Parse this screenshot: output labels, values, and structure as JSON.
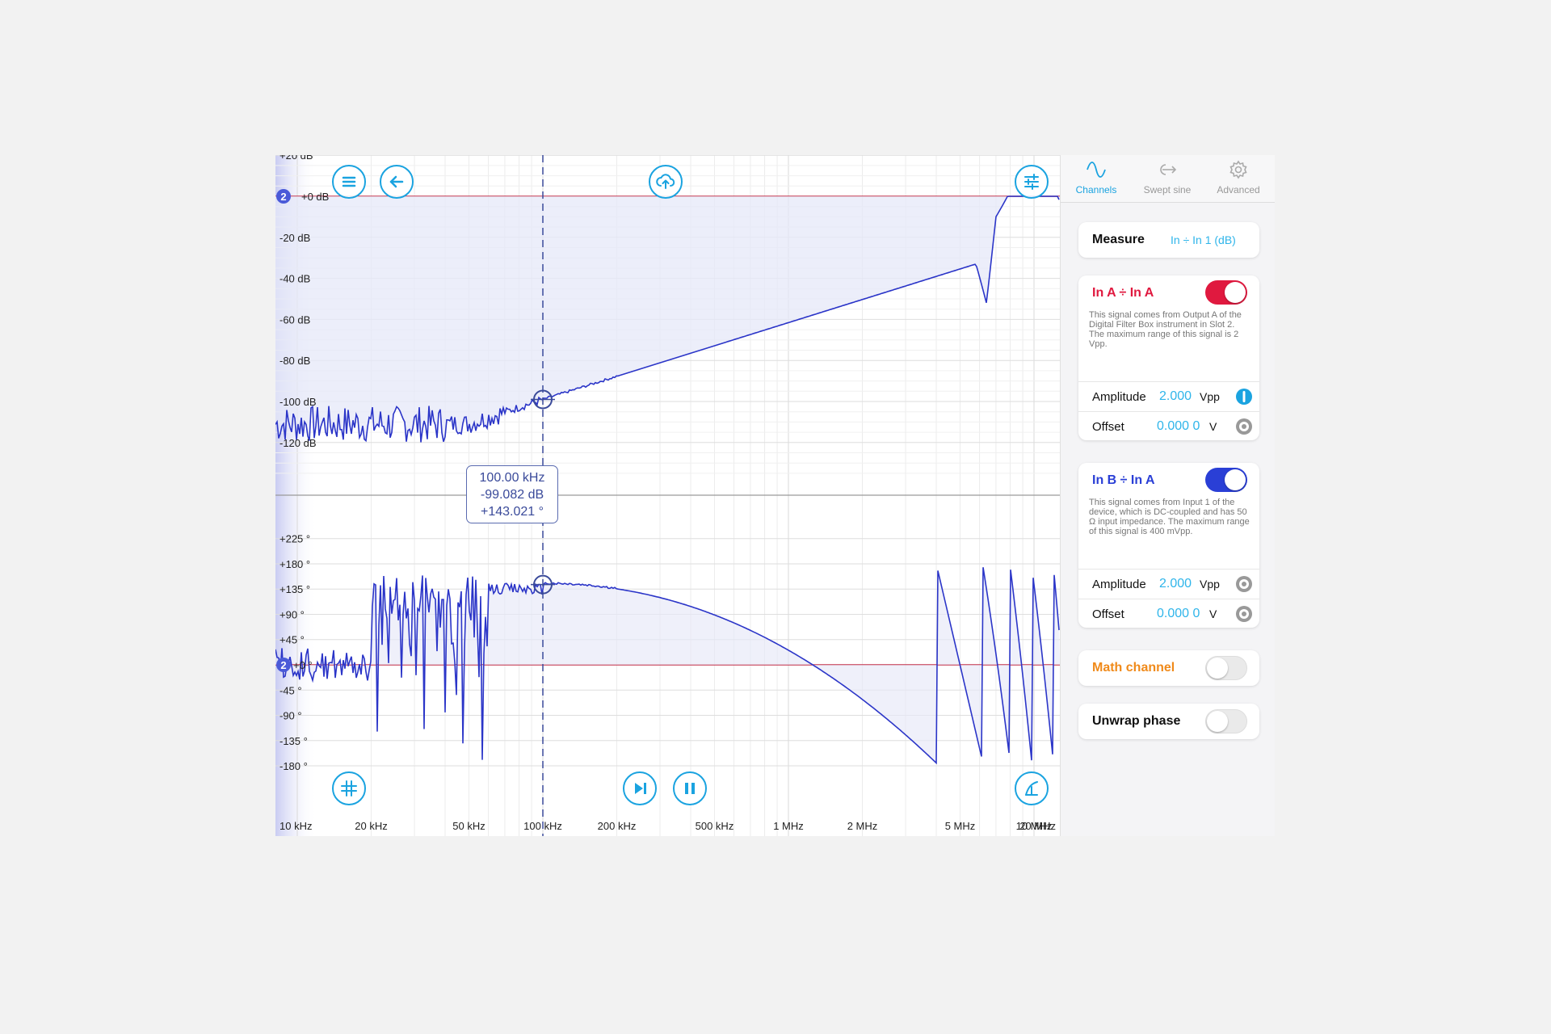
{
  "plot": {
    "magnitude_ticks": [
      "+20 dB",
      "+0 dB",
      "-20 dB",
      "-40 dB",
      "-60 dB",
      "-80 dB",
      "-100 dB",
      "-120 dB"
    ],
    "phase_ticks": [
      "+225 °",
      "+180 °",
      "+135 °",
      "+90 °",
      "+45 °",
      "+0 °",
      "-45 °",
      "-90 °",
      "-135 °",
      "-180 °"
    ],
    "freq_ticks": [
      "10 kHz",
      "20 kHz",
      "50 kHz",
      "100 kHz",
      "200 kHz",
      "500 kHz",
      "1 MHz",
      "2 MHz",
      "5 MHz",
      "10 MHz",
      "20 MHz"
    ],
    "ref_marker_mag": "2",
    "ref_marker_phase": "2",
    "cursor": {
      "freq": "100.00 kHz",
      "mag": "-99.082 dB",
      "phase": "+143.021 °"
    },
    "colors": {
      "trace": "#2b35c8",
      "reference": "#c43048",
      "accent": "#1aa3e0",
      "fill": "#e6e8f8"
    }
  },
  "chart_data": [
    {
      "type": "line",
      "title": "",
      "xlabel": "",
      "ylabel": "",
      "x_scale": "log",
      "xlim": [
        10000,
        25000000
      ],
      "ylim": [
        -130,
        20
      ],
      "series": [
        {
          "x": [
            10000,
            20000,
            30000,
            50000,
            70000,
            100000,
            200000,
            500000,
            1000000,
            2000000,
            5000000,
            6000000,
            6500000,
            7000000,
            8000000,
            10000000,
            12000000,
            13000000,
            14000000,
            17000000,
            20000000,
            25000000
          ],
          "y": [
            -110,
            -112,
            -111,
            -110,
            -104,
            -99,
            -90,
            -78,
            -68,
            -56,
            -38,
            -30,
            -52,
            -10,
            0,
            0,
            0,
            -10,
            -38,
            -12,
            -12,
            -13
          ]
        }
      ]
    },
    {
      "type": "line",
      "title": "",
      "xlabel": "",
      "ylabel": "",
      "x_scale": "log",
      "xlim": [
        10000,
        25000000
      ],
      "ylim": [
        -200,
        240
      ],
      "series": [
        {
          "x": [
            10000,
            20000,
            40000,
            60000,
            100000,
            150000,
            200000,
            300000,
            500000,
            1000000,
            2000000,
            3000000,
            4000000,
            4000001,
            5000000,
            7000000,
            7000001,
            8000000,
            8000001,
            9500000,
            9500001,
            11000000,
            11000001,
            13000000,
            13000001,
            15000000,
            15000001,
            17000000,
            17000001,
            20000000,
            20000001,
            25000000
          ],
          "y": [
            0,
            20,
            120,
            140,
            143,
            145,
            144,
            140,
            130,
            95,
            5,
            -80,
            -180,
            180,
            90,
            -170,
            170,
            -170,
            170,
            -170,
            170,
            -170,
            170,
            -170,
            170,
            -170,
            170,
            -170,
            170,
            -170,
            180,
            -170
          ]
        }
      ]
    }
  ],
  "panel": {
    "tabs": [
      {
        "label": "Channels",
        "icon": "sine-wave-icon"
      },
      {
        "label": "Swept sine",
        "icon": "swept-sine-icon"
      },
      {
        "label": "Advanced",
        "icon": "gear-icon"
      }
    ],
    "measure": {
      "label": "Measure",
      "value": "In ÷ In 1 (dB)"
    },
    "chA": {
      "title": "In A ÷ In A",
      "color": "#e0193f",
      "desc": "This signal comes from Output A of the Digital Filter Box instrument in Slot 2. The maximum range of this signal is 2 Vpp.",
      "amplitude_label": "Amplitude",
      "amplitude_value": "2.000",
      "amplitude_unit": "Vpp",
      "offset_label": "Offset",
      "offset_value": "0.000 0",
      "offset_unit": "V"
    },
    "chB": {
      "title": "In B ÷ In A",
      "color": "#2a3fd6",
      "desc": "This signal comes from Input 1 of the device, which is DC-coupled and has 50 Ω input impedance. The maximum range of this signal is 400 mVpp.",
      "amplitude_label": "Amplitude",
      "amplitude_value": "2.000",
      "amplitude_unit": "Vpp",
      "offset_label": "Offset",
      "offset_value": "0.000 0",
      "offset_unit": "V"
    },
    "math": {
      "label": "Math channel",
      "color": "#f08a1a"
    },
    "unwrap": {
      "label": "Unwrap phase"
    }
  }
}
